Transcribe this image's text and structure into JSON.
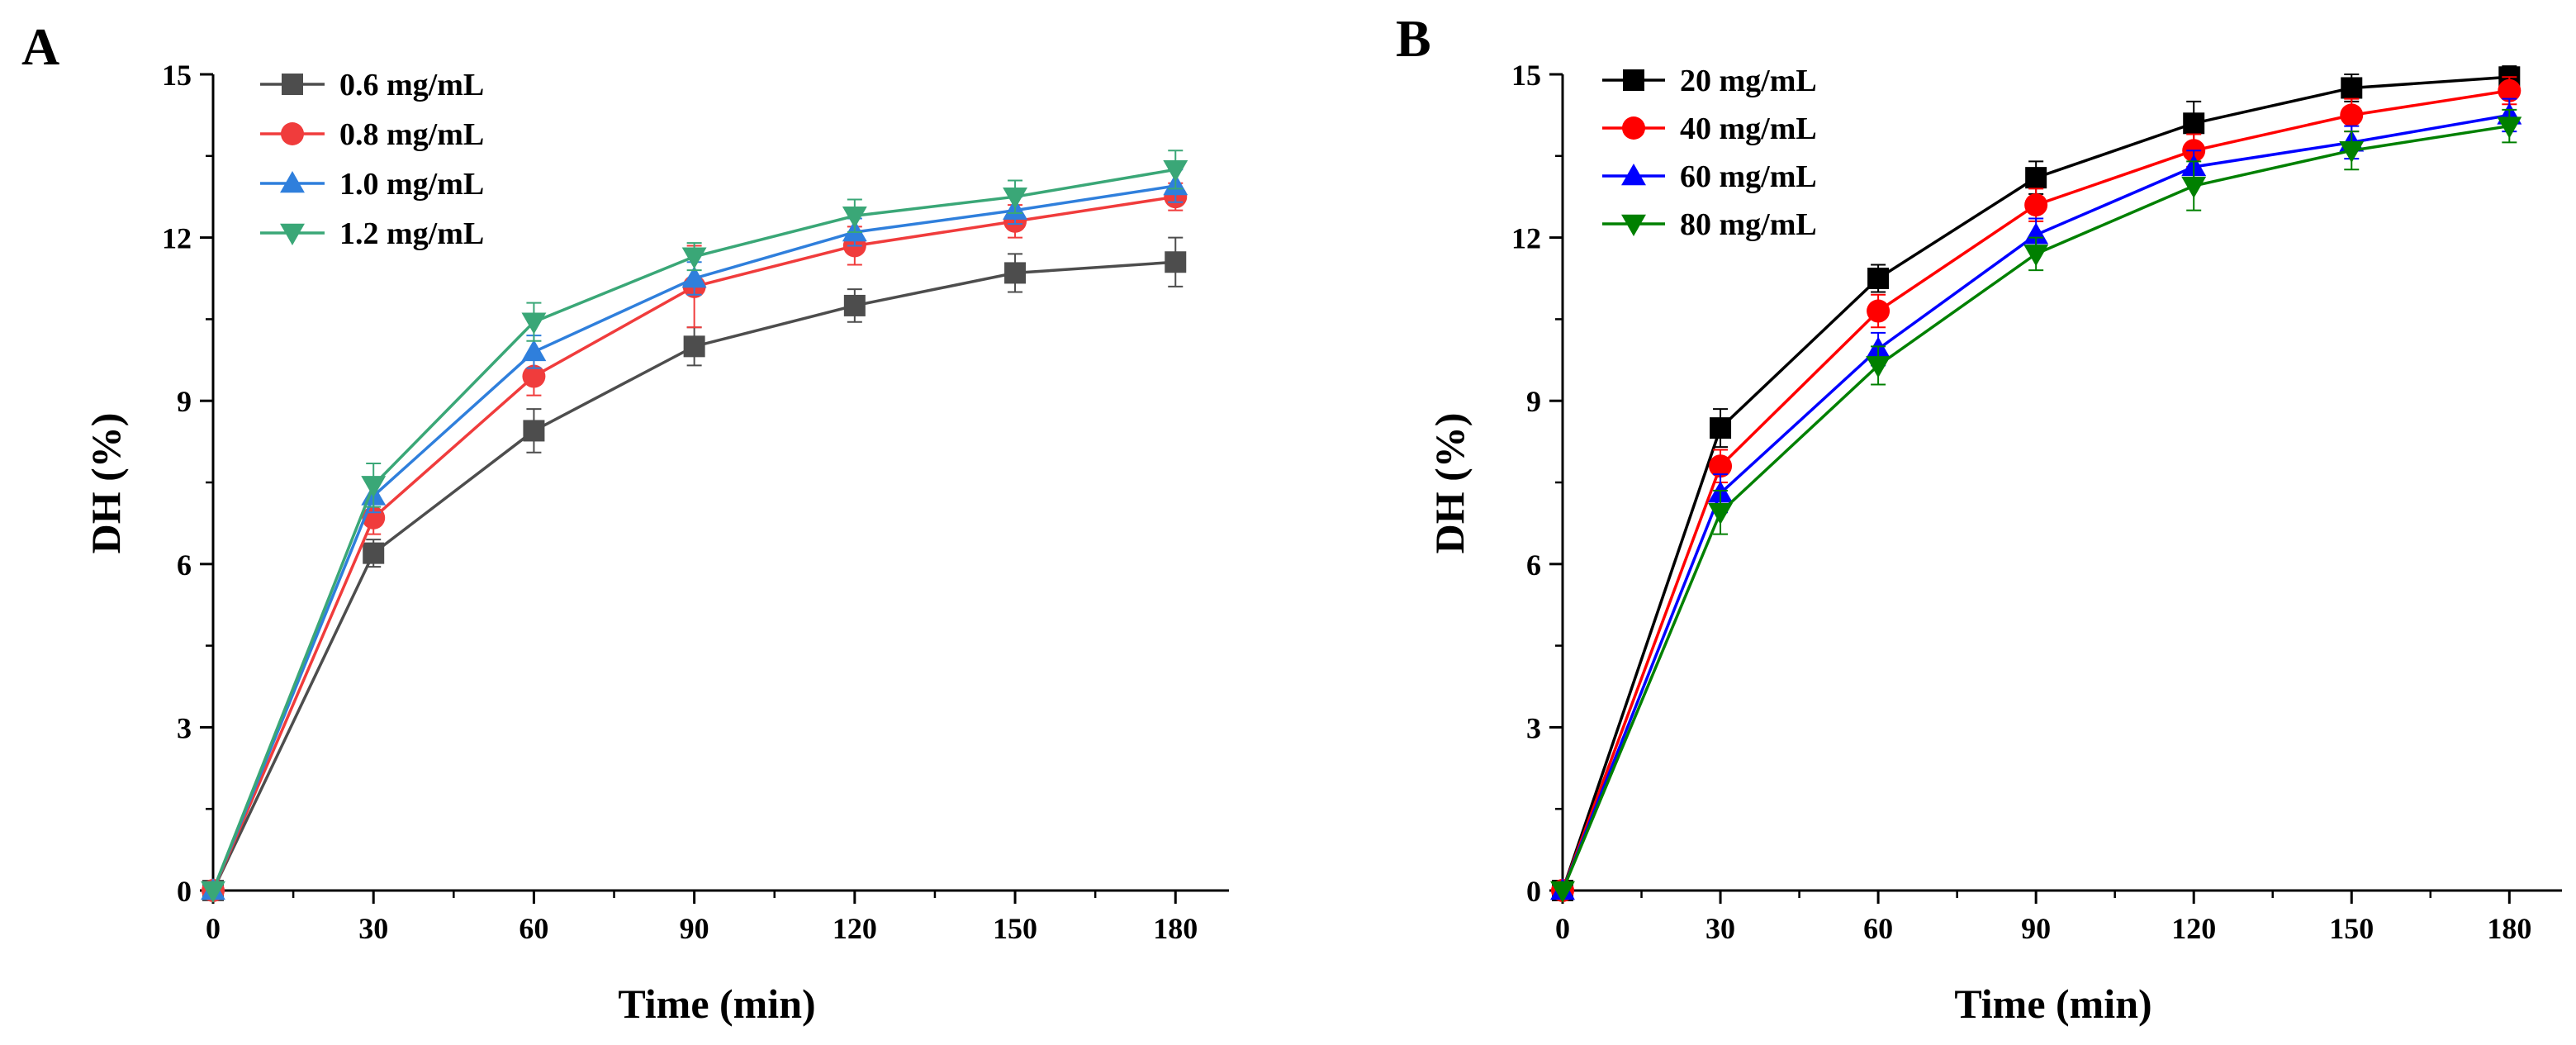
{
  "chart_data": [
    {
      "type": "line",
      "panel_label": "A",
      "xlabel": "Time (min)",
      "ylabel": "DH (%)",
      "x": [
        0,
        30,
        60,
        90,
        120,
        150,
        180
      ],
      "xlim": [
        0,
        190
      ],
      "ylim": [
        0,
        15
      ],
      "xticks": [
        0,
        30,
        60,
        90,
        120,
        150,
        180
      ],
      "yticks": [
        0,
        3,
        6,
        9,
        12,
        15
      ],
      "legend_position": "top-left",
      "grid": false,
      "series": [
        {
          "name": "0.6 mg/mL",
          "color": "#4d4d4d",
          "marker": "square",
          "values": [
            0,
            6.2,
            8.45,
            10.0,
            10.75,
            11.35,
            11.55
          ],
          "errors": [
            0,
            0.25,
            0.4,
            0.35,
            0.3,
            0.35,
            0.45
          ]
        },
        {
          "name": "0.8 mg/mL",
          "color": "#f03c3c",
          "marker": "circle",
          "values": [
            0,
            6.85,
            9.45,
            11.1,
            11.85,
            12.3,
            12.75
          ],
          "errors": [
            0,
            0.3,
            0.35,
            0.75,
            0.35,
            0.3,
            0.25
          ]
        },
        {
          "name": "1.0 mg/mL",
          "color": "#2f7fdc",
          "marker": "triangle-up",
          "values": [
            0,
            7.25,
            9.9,
            11.25,
            12.1,
            12.5,
            12.95
          ],
          "errors": [
            0,
            0.3,
            0.3,
            0.3,
            0.25,
            0.25,
            0.3
          ]
        },
        {
          "name": "1.2 mg/mL",
          "color": "#3aa777",
          "marker": "triangle-down",
          "values": [
            0,
            7.45,
            10.45,
            11.65,
            12.4,
            12.75,
            13.25
          ],
          "errors": [
            0,
            0.4,
            0.35,
            0.25,
            0.3,
            0.3,
            0.35
          ]
        }
      ]
    },
    {
      "type": "line",
      "panel_label": "B",
      "xlabel": "Time (min)",
      "ylabel": "DH (%)",
      "x": [
        0,
        30,
        60,
        90,
        120,
        150,
        180
      ],
      "xlim": [
        0,
        190
      ],
      "ylim": [
        0,
        15
      ],
      "xticks": [
        0,
        30,
        60,
        90,
        120,
        150,
        180
      ],
      "yticks": [
        0,
        3,
        6,
        9,
        12,
        15
      ],
      "legend_position": "top-left",
      "grid": false,
      "series": [
        {
          "name": "20 mg/mL",
          "color": "#000000",
          "marker": "square",
          "values": [
            0,
            8.5,
            11.25,
            13.1,
            14.1,
            14.75,
            14.95
          ],
          "errors": [
            0,
            0.35,
            0.25,
            0.3,
            0.4,
            0.25,
            0.2
          ]
        },
        {
          "name": "40 mg/mL",
          "color": "#ff0000",
          "marker": "circle",
          "values": [
            0,
            7.8,
            10.65,
            12.6,
            13.6,
            14.25,
            14.7
          ],
          "errors": [
            0,
            0.3,
            0.3,
            0.3,
            0.3,
            0.3,
            0.25
          ]
        },
        {
          "name": "60 mg/mL",
          "color": "#0000ff",
          "marker": "triangle-up",
          "values": [
            0,
            7.3,
            9.95,
            12.05,
            13.3,
            13.75,
            14.25
          ],
          "errors": [
            0,
            0.35,
            0.3,
            0.3,
            0.3,
            0.3,
            0.3
          ]
        },
        {
          "name": "80 mg/mL",
          "color": "#008000",
          "marker": "triangle-down",
          "values": [
            0,
            6.95,
            9.65,
            11.7,
            12.95,
            13.6,
            14.05
          ],
          "errors": [
            0,
            0.4,
            0.35,
            0.3,
            0.45,
            0.35,
            0.3
          ]
        }
      ]
    }
  ]
}
